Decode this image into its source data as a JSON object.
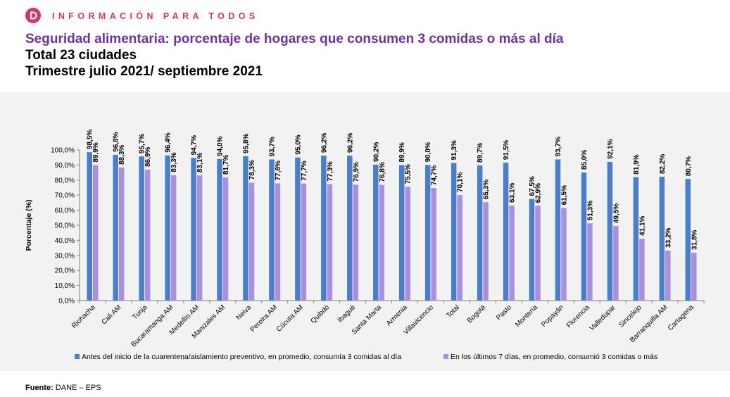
{
  "header": {
    "brand": "INFORMACIÓN PARA TODOS",
    "title": "Seguridad alimentaria: porcentaje de hogares que consumen 3 comidas o más al día",
    "subtitle_1": "Total 23 ciudades",
    "subtitle_2": "Trimestre julio 2021/ septiembre 2021"
  },
  "colors": {
    "brand": "#d6336c",
    "title": "#7030a0",
    "series_1": "#4a7ec9",
    "series_2": "#a98fdf",
    "panel_bg": "#f2f2f2"
  },
  "footer": {
    "source_label": "Fuente:",
    "source_value": " DANE – EPS"
  },
  "chart_data": {
    "type": "bar",
    "ylabel": "Porcentaje (%)",
    "xlabel": "",
    "ylim": [
      0,
      100
    ],
    "yticks": [
      "0,0%",
      "10,0%",
      "20,0%",
      "30,0%",
      "40,0%",
      "50,0%",
      "60,0%",
      "70,0%",
      "80,0%",
      "90,0%",
      "100,0%"
    ],
    "grid": false,
    "legend_position": "bottom",
    "categories": [
      "Riohacha",
      "Cali AM",
      "Tunja",
      "Bucaramanga AM",
      "Medellín AM",
      "Manizales AM",
      "Neiva",
      "Pereira AM",
      "Cúcuta AM",
      "Quibdó",
      "Ibagué",
      "Santa Marta",
      "Armenia",
      "Villavicencio",
      "Total",
      "Bogotá",
      "Pasto",
      "Montería",
      "Popayán",
      "Florencia",
      "Valledupar",
      "Sincelejo",
      "Barranquilla AM",
      "Cartagena"
    ],
    "series": [
      {
        "name": "Antes del inicio de la cuarentena/aislamiento preventivo, en promedio, consumía 3 comidas al día",
        "values": [
          98.5,
          96.8,
          95.7,
          96.4,
          94.7,
          94.0,
          95.8,
          93.7,
          95.0,
          96.2,
          96.2,
          90.2,
          89.9,
          90.0,
          91.3,
          89.7,
          91.5,
          67.5,
          93.7,
          85.0,
          92.1,
          81.9,
          82.2,
          80.7
        ],
        "labels": [
          "98,5%",
          "96,8%",
          "95,7%",
          "96,4%",
          "94,7%",
          "94,0%",
          "95,8%",
          "93,7%",
          "95,0%",
          "96,2%",
          "96,2%",
          "90,2%",
          "89,9%",
          "90,0%",
          "91,3%",
          "89,7%",
          "91,5%",
          "67,5%",
          "93,7%",
          "85,0%",
          "92,1%",
          "81,9%",
          "82,2%",
          "80,7%"
        ]
      },
      {
        "name": "En los últimos 7 días, en promedio, consumió 3 comidas o más",
        "values": [
          89.9,
          88.3,
          86.9,
          83.3,
          83.1,
          81.7,
          78.3,
          77.8,
          77.7,
          77.3,
          76.9,
          76.8,
          75.5,
          74.7,
          70.1,
          65.3,
          63.1,
          62.9,
          61.5,
          51.3,
          49.5,
          41.1,
          33.2,
          31.8
        ],
        "labels": [
          "89,9%",
          "88,3%",
          "86,9%",
          "83,3%",
          "83,1%",
          "81,7%",
          "78,3%",
          "77,8%",
          "77,7%",
          "77,3%",
          "76,9%",
          "76,8%",
          "75,5%",
          "74,7%",
          "70,1%",
          "65,3%",
          "63,1%",
          "62,9%",
          "61,5%",
          "51,3%",
          "49,5%",
          "41,1%",
          "33,2%",
          "31,8%"
        ]
      }
    ]
  }
}
